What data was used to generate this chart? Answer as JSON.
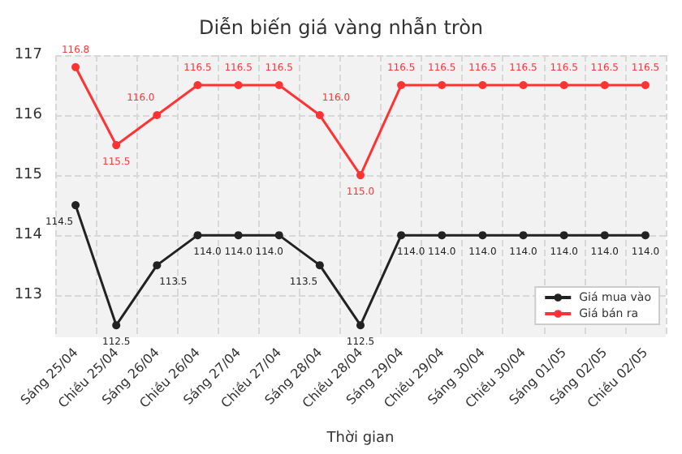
{
  "chart_data": {
    "type": "line",
    "title": "Diễn biến giá vàng nhẫn tròn",
    "xlabel": "Thời gian",
    "categories": [
      "Sáng 25/04",
      "Chiều 25/04",
      "Sáng 26/04",
      "Chiều 26/04",
      "Sáng 27/04",
      "Chiều 27/04",
      "Sáng 28/04",
      "Chiều 28/04",
      "Sáng 29/04",
      "Chiều 29/04",
      "Sáng 30/04",
      "Chiều 30/04",
      "Sáng 01/05",
      "Sáng 02/05",
      "Chiều 02/05"
    ],
    "series": [
      {
        "name": "Giá mua vào",
        "color": "#222222",
        "values": [
          114.5,
          112.5,
          113.5,
          114,
          114,
          114,
          113.5,
          112.5,
          114,
          114,
          114,
          114,
          114,
          114,
          114
        ],
        "value_labels": [
          "114.5",
          "112.5",
          "113.5",
          "114.0",
          "114.0",
          "114.0",
          "113.5",
          "112.5",
          "114.0",
          "114.0",
          "114.0",
          "114.0",
          "114.0",
          "114.0",
          "114.0"
        ]
      },
      {
        "name": "Giá bán ra",
        "color": "#ff3333",
        "values": [
          116.8,
          115.5,
          116,
          116.5,
          116.5,
          116.5,
          116,
          115,
          116.5,
          116.5,
          116.5,
          116.5,
          116.5,
          116.5,
          116.5
        ],
        "value_labels": [
          "116.8",
          "115.5",
          "116.0",
          "116.5",
          "116.5",
          "116.5",
          "116.0",
          "115.0",
          "116.5",
          "116.5",
          "116.5",
          "116.5",
          "116.5",
          "116.5",
          "116.5"
        ]
      }
    ],
    "ylim": [
      112.3,
      117
    ],
    "yticks": [
      113,
      114,
      115,
      116,
      117
    ],
    "grid": true,
    "legend": "bottom right",
    "marker": "circle",
    "line_style": "solid"
  }
}
